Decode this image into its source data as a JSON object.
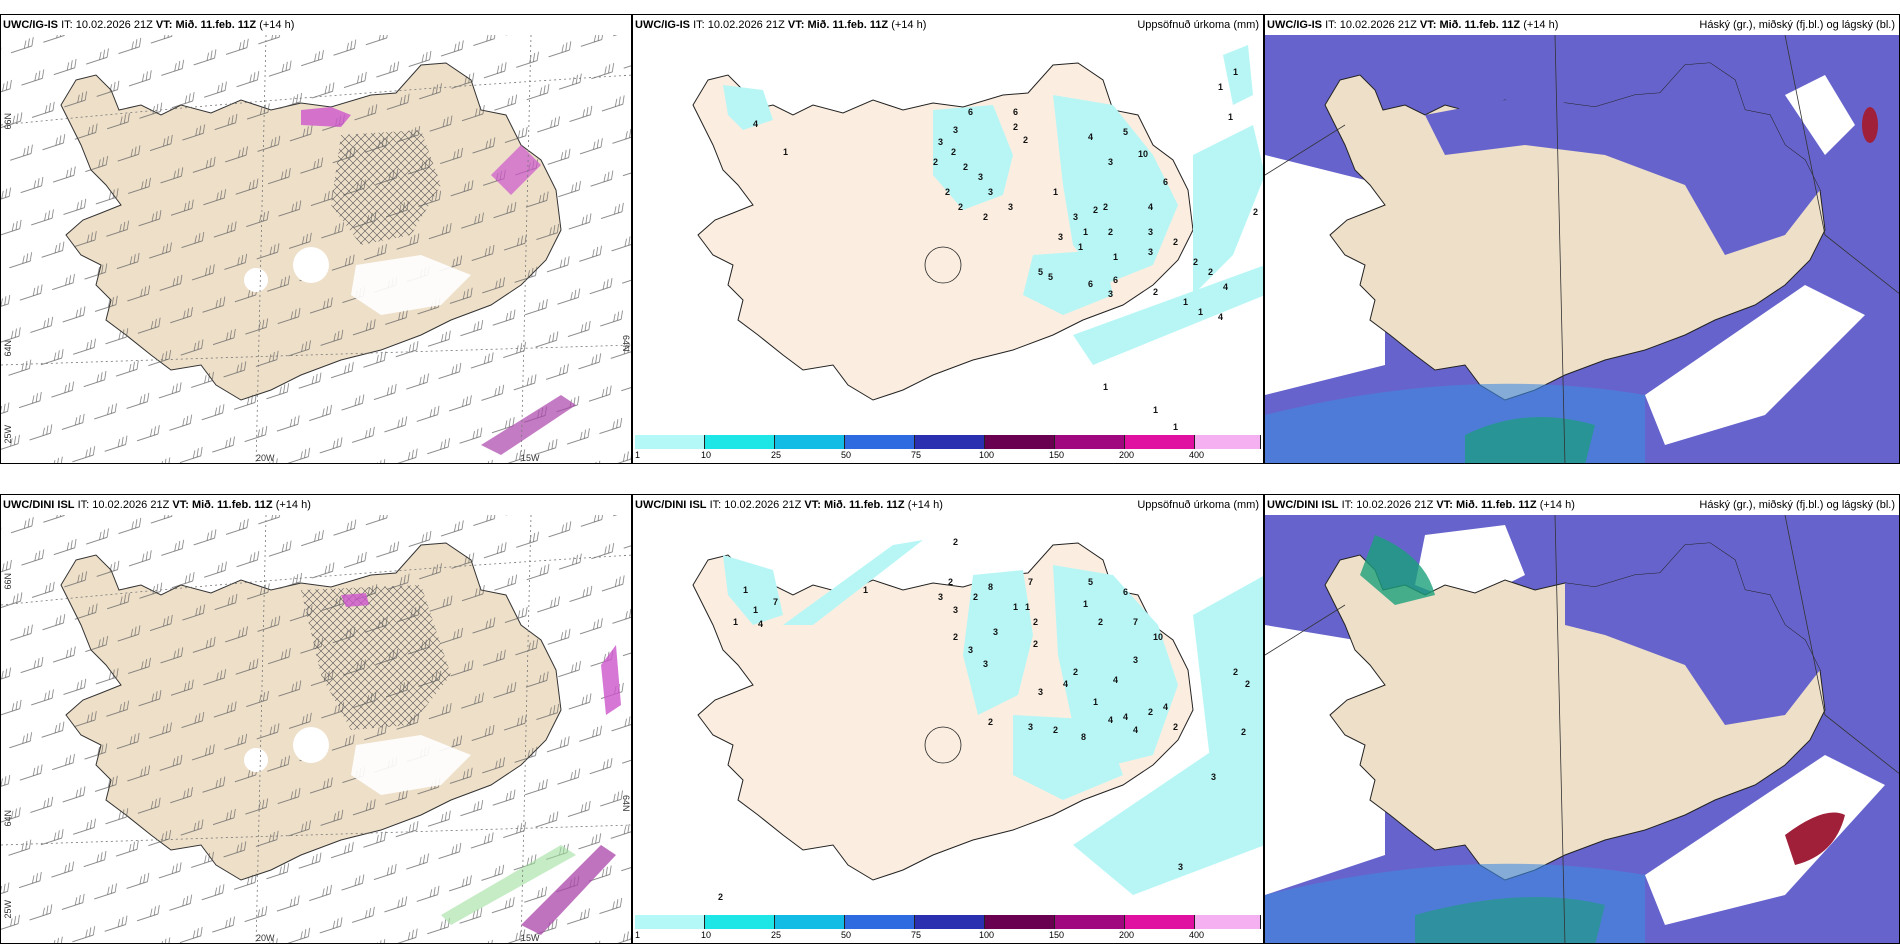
{
  "rows": [
    {
      "model": "UWC/IG-IS",
      "it_label": "IT:",
      "it": "10.02.2026 21Z",
      "vt_label": "VT:",
      "vt": "Mið. 11.feb. 11Z",
      "lead": "(+14 h)",
      "precip_title": "Uppsöfnuð úrkoma (mm)",
      "cloud_title": "Háský (gr.), miðský (fj.bl.) og lágský (bl.)",
      "precip_points": [
        "1",
        "1",
        "1",
        "4",
        "1",
        "6",
        "6",
        "2",
        "2",
        "3",
        "3",
        "2",
        "2",
        "2",
        "3",
        "2",
        "3",
        "2",
        "3",
        "2",
        "4",
        "5",
        "10",
        "3",
        "6",
        "1",
        "2",
        "2",
        "3",
        "4",
        "3",
        "1",
        "2",
        "1",
        "1",
        "3",
        "3",
        "5",
        "2",
        "2",
        "6",
        "6",
        "5",
        "3",
        "2",
        "4",
        "2",
        "1",
        "1",
        "4",
        "2",
        "1",
        "1",
        "1"
      ]
    },
    {
      "model": "UWC/DINI ISL",
      "it_label": "IT:",
      "it": "10.02.2026 21Z",
      "vt_label": "VT:",
      "vt": "Mið. 11.feb. 11Z",
      "lead": "(+14 h)",
      "precip_title": "Uppsöfnuð úrkoma (mm)",
      "cloud_title": "Háský (gr.), miðský (fj.bl.) og lágský (bl.)",
      "precip_points": [
        "2",
        "1",
        "1",
        "1",
        "7",
        "4",
        "1",
        "2",
        "3",
        "3",
        "2",
        "8",
        "7",
        "1",
        "1",
        "2",
        "5",
        "6",
        "1",
        "2",
        "3",
        "2",
        "3",
        "3",
        "2",
        "7",
        "10",
        "3",
        "2",
        "4",
        "3",
        "4",
        "2",
        "4",
        "1",
        "2",
        "2",
        "3",
        "8",
        "4",
        "4",
        "4",
        "2",
        "2",
        "2",
        "2",
        "3",
        "2",
        "3"
      ]
    }
  ],
  "colorbar": {
    "ticks": [
      "1",
      "10",
      "25",
      "50",
      "75",
      "100",
      "150",
      "200",
      "400"
    ],
    "colors": [
      "#b4f8f8",
      "#1ee6e6",
      "#12bce4",
      "#2e6be0",
      "#2a30b0",
      "#6a0050",
      "#a00880",
      "#e010a0",
      "#f4b0f0"
    ]
  },
  "axis_labels": {
    "lat66": "66N",
    "lat64": "64N",
    "lon25": "25W",
    "lon20": "20W",
    "lon15": "15W"
  },
  "colors": {
    "land": "#eedfc8",
    "land_light": "#fbeee0",
    "precip": "#b8f6f6",
    "cloud_high": "#6664cc",
    "cloud_mid": "#3f8ae0",
    "cloud_low": "#1aa07a"
  }
}
